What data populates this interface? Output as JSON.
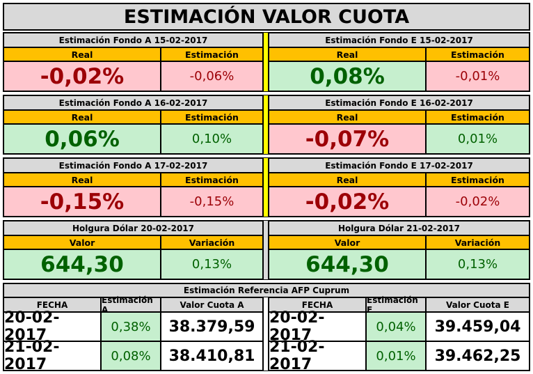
{
  "title": "ESTIMACIÓN VALOR CUOTA",
  "row1": {
    "left": {
      "header": "Estimación Fondo A  15-02-2017",
      "col1": "Real",
      "col2": "Estimación",
      "val1": "-0,02%",
      "val2": "-0,06%"
    },
    "right": {
      "header": "Estimación Fondo E  15-02-2017",
      "col1": "Real",
      "col2": "Estimación",
      "val1": "0,08%",
      "val2": "-0,01%"
    }
  },
  "row2": {
    "left": {
      "header": "Estimación Fondo A  16-02-2017",
      "col1": "Real",
      "col2": "Estimación",
      "val1": "0,06%",
      "val2": "0,10%"
    },
    "right": {
      "header": "Estimación Fondo E  16-02-2017",
      "col1": "Real",
      "col2": "Estimación",
      "val1": "-0,07%",
      "val2": "0,01%"
    }
  },
  "row3": {
    "left": {
      "header": "Estimación Fondo A  17-02-2017",
      "col1": "Real",
      "col2": "Estimación",
      "val1": "-0,15%",
      "val2": "-0,15%"
    },
    "right": {
      "header": "Estimación Fondo E  17-02-2017",
      "col1": "Real",
      "col2": "Estimación",
      "val1": "-0,02%",
      "val2": "-0,02%"
    }
  },
  "row4": {
    "left": {
      "header": "Holgura Dólar  20-02-2017",
      "col1": "Valor",
      "col2": "Variación",
      "val1": "644,30",
      "val2": "0,13%"
    },
    "right": {
      "header": "Holgura Dólar  21-02-2017",
      "col1": "Valor",
      "col2": "Variación",
      "val1": "644,30",
      "val2": "0,13%"
    }
  },
  "reference": {
    "header": "Estimación Referencia AFP Cuprum",
    "columns": [
      "FECHA",
      "Estimación A",
      "Valor Cuota A",
      "FECHA",
      "Estimación E",
      "Valor Cuota E"
    ],
    "rows": [
      [
        "20-02-2017",
        "0,38%",
        "38.379,59",
        "20-02-2017",
        "0,04%",
        "39.459,04"
      ],
      [
        "21-02-2017",
        "0,08%",
        "38.410,81",
        "21-02-2017",
        "0,01%",
        "39.462,25"
      ]
    ]
  }
}
